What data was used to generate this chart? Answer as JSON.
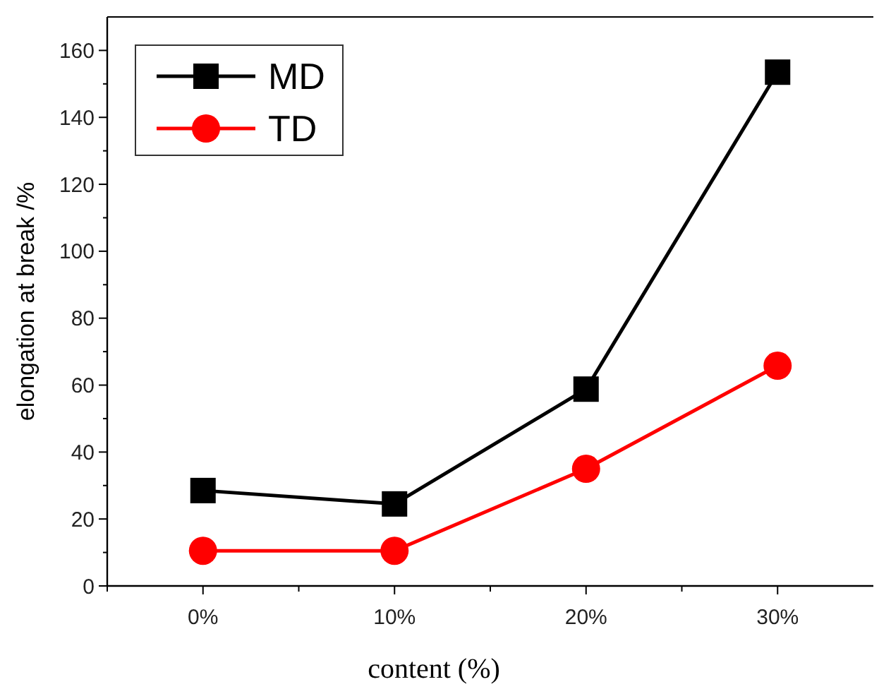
{
  "chart_data": {
    "type": "line",
    "xlabel": "content (%)",
    "ylabel": "elongation at break /%",
    "categories": [
      "0%",
      "10%",
      "20%",
      "30%"
    ],
    "series": [
      {
        "name": "MD",
        "color": "#000000",
        "values": [
          28.5,
          24.5,
          58.8,
          153.5
        ],
        "marker": "square"
      },
      {
        "name": "TD",
        "color": "#ff0000",
        "values": [
          10.5,
          10.5,
          35,
          65.8
        ],
        "marker": "circle"
      }
    ],
    "ylim": [
      0,
      170
    ],
    "yticks": [
      0,
      20,
      40,
      60,
      80,
      100,
      120,
      140,
      160
    ],
    "grid": false,
    "legend": "top left",
    "line_style": "solid"
  }
}
